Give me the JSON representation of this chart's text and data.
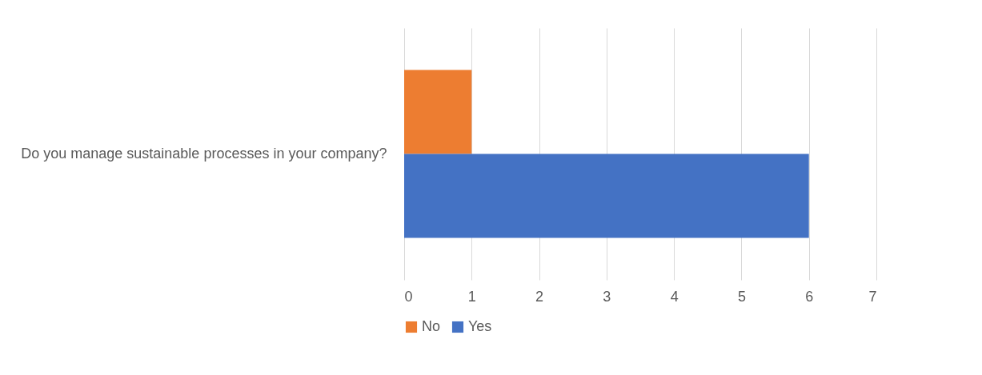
{
  "chart_data": {
    "type": "bar",
    "orientation": "horizontal",
    "categories": [
      "Do you manage sustainable processes in your company?"
    ],
    "series": [
      {
        "name": "No",
        "color": "#ed7d31",
        "values": [
          1
        ]
      },
      {
        "name": "Yes",
        "color": "#4472c4",
        "values": [
          6
        ]
      }
    ],
    "xlim": [
      0,
      7
    ],
    "xticks": [
      0,
      1,
      2,
      3,
      4,
      5,
      6,
      7
    ],
    "grid": "x",
    "legend": "bottom"
  }
}
